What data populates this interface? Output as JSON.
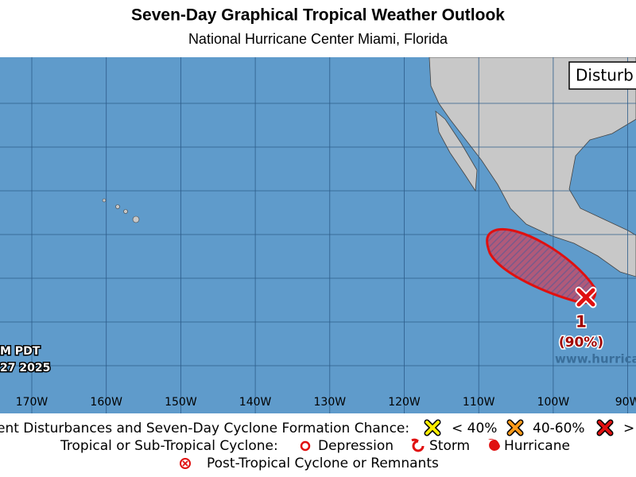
{
  "header": {
    "title": "Seven-Day Graphical Tropical Weather Outlook",
    "subtitle": "National Hurricane Center  Miami, Florida"
  },
  "map": {
    "inset_label": "Disturb",
    "time_lines": [
      "M PDT",
      "27 2025"
    ],
    "longitude_labels": [
      "170W",
      "160W",
      "150W",
      "140W",
      "130W",
      "120W",
      "110W",
      "100W",
      "90W"
    ],
    "disturbances": [
      {
        "label": "1",
        "chance": "(90%)"
      }
    ],
    "watermark": "www.hurrica"
  },
  "legend": {
    "formation_label": "ent Disturbances and Seven-Day Cyclone Formation Chance:",
    "chances": [
      "< 40%",
      "40-60%",
      ">"
    ],
    "cyclone_label": "Tropical or Sub-Tropical Cyclone:",
    "cyclone_types": [
      "Depression",
      "Storm",
      "Hurricane"
    ],
    "post_tropical": "Post-Tropical Cyclone or Remnants"
  }
}
